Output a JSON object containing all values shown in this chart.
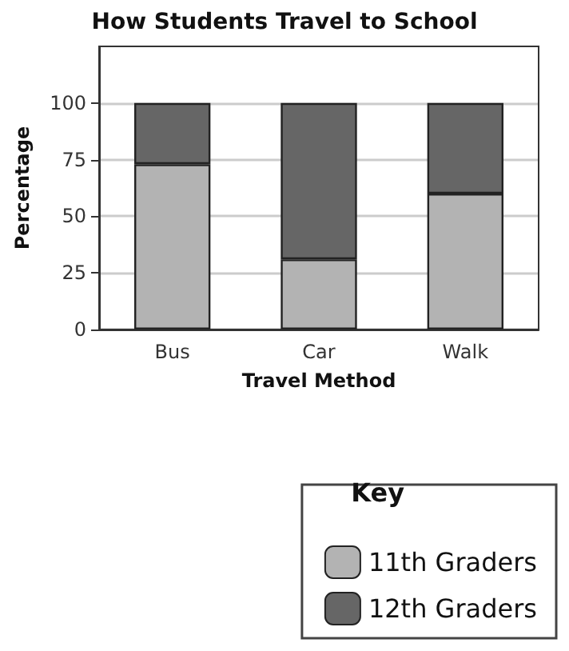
{
  "chart_data": {
    "type": "bar",
    "title": "How Students Travel to School",
    "xlabel": "Travel Method",
    "ylabel": "Percentage",
    "legend_title": "Key",
    "categories": [
      "Bus",
      "Car",
      "Walk"
    ],
    "stacked": true,
    "series": [
      {
        "name": "11th Graders",
        "color": "#b3b3b3",
        "values": [
          73,
          31,
          60
        ]
      },
      {
        "name": "12th Graders",
        "color": "#666666",
        "values": [
          27,
          69,
          40
        ]
      }
    ],
    "ylim": [
      0,
      125
    ],
    "yticks": [
      0,
      25,
      50,
      75,
      100
    ],
    "grid": "y",
    "legend": "bottom right"
  }
}
